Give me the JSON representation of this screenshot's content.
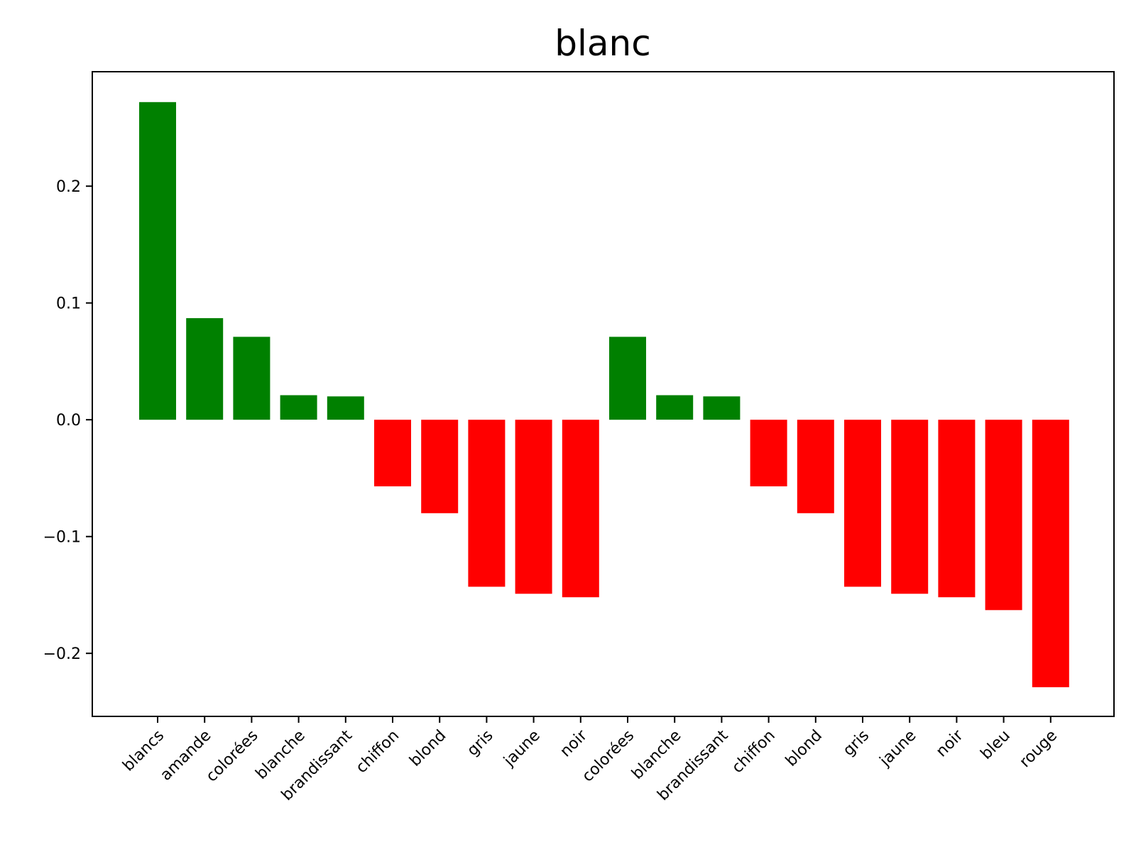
{
  "chart_data": {
    "type": "bar",
    "title": "blanc",
    "xlabel": "",
    "ylabel": "",
    "ylim": [
      -0.254,
      0.298
    ],
    "yticks": [
      -0.2,
      -0.1,
      0.0,
      0.1,
      0.2
    ],
    "ytick_labels": [
      "−0.2",
      "−0.1",
      "0.0",
      "0.1",
      "0.2"
    ],
    "grid": false,
    "legend": "none",
    "categories": [
      "blancs",
      "amande",
      "colorées",
      "blanche",
      "brandissant",
      "chiffon",
      "blond",
      "gris",
      "jaune",
      "noir",
      "colorées",
      "blanche",
      "brandissant",
      "chiffon",
      "blond",
      "gris",
      "jaune",
      "noir",
      "bleu",
      "rouge"
    ],
    "values": [
      0.272,
      0.087,
      0.071,
      0.021,
      0.02,
      -0.057,
      -0.08,
      -0.143,
      -0.149,
      -0.152,
      0.071,
      0.021,
      0.02,
      -0.057,
      -0.08,
      -0.143,
      -0.149,
      -0.152,
      -0.163,
      -0.229
    ],
    "positive_color": "#008000",
    "negative_color": "#ff0000"
  }
}
